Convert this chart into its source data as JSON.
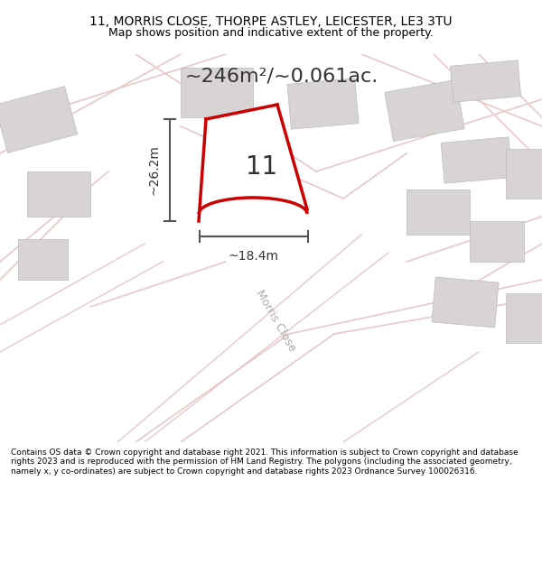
{
  "title_line1": "11, MORRIS CLOSE, THORPE ASTLEY, LEICESTER, LE3 3TU",
  "title_line2": "Map shows position and indicative extent of the property.",
  "area_text": "~246m²/~0.061ac.",
  "plot_number": "11",
  "dim_width": "~18.4m",
  "dim_height": "~26.2m",
  "street_label": "Morris Close",
  "footer_text": "Contains OS data © Crown copyright and database right 2021. This information is subject to Crown copyright and database rights 2023 and is reproduced with the permission of HM Land Registry. The polygons (including the associated geometry, namely x, y co-ordinates) are subject to Crown copyright and database rights 2023 Ordnance Survey 100026316.",
  "bg_color": "#f5f5f5",
  "map_bg": "#f0eeee",
  "plot_fill": "#ffffff",
  "plot_edge": "#cc0000",
  "road_color": "#e8c8c8",
  "building_color": "#d8d4d4",
  "dim_color": "#555555",
  "title_bg": "#ffffff",
  "footer_bg": "#ffffff"
}
